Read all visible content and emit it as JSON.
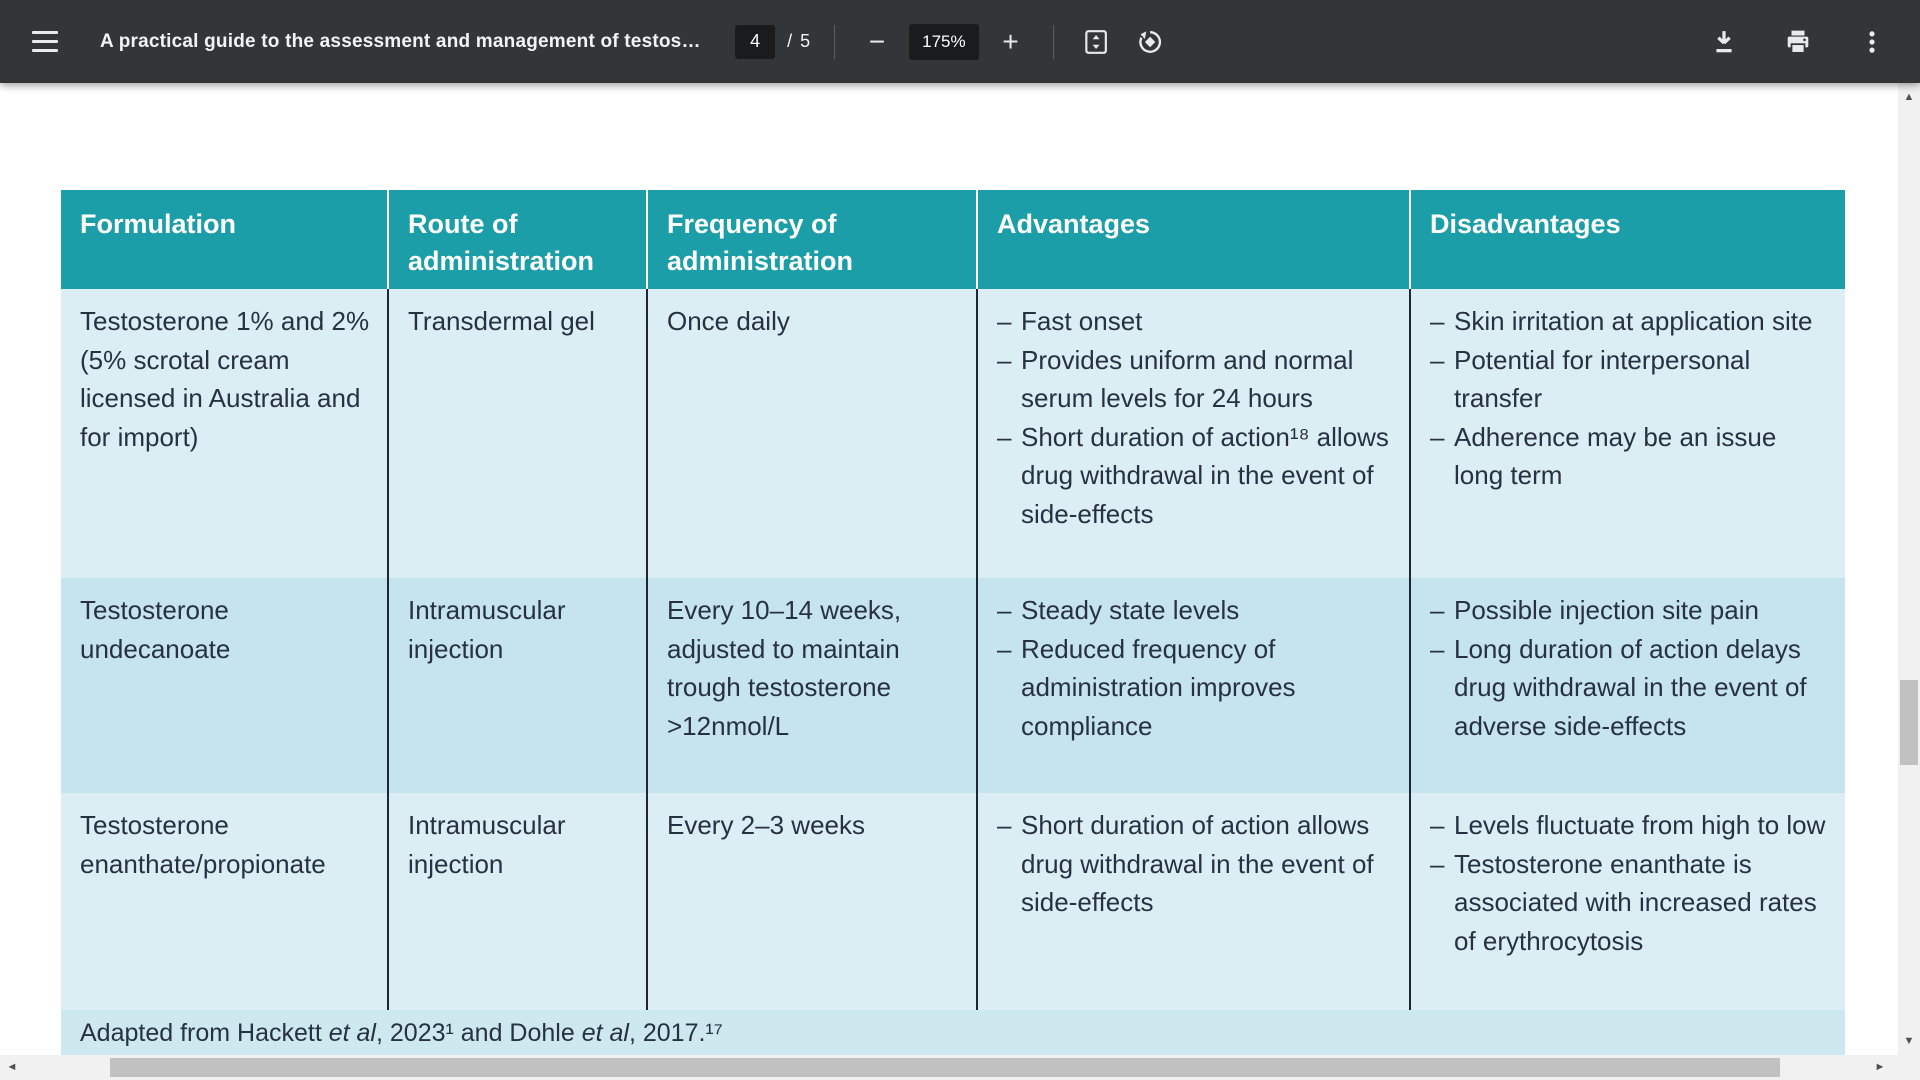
{
  "toolbar": {
    "title": "A practical guide to the assessment and management of testos…",
    "page_current": "4",
    "page_separator": "/",
    "page_total": "5",
    "zoom_out_label": "−",
    "zoom_level": "175%",
    "zoom_in_label": "+"
  },
  "icons": {
    "menu": "hamburger",
    "fit_page": "fit-to-page",
    "rotate": "rotate-counterclockwise",
    "download": "arrow-down-to-line",
    "print": "printer",
    "more": "three-vertical-dots",
    "scroll_up": "▲",
    "scroll_down": "▼",
    "scroll_left": "◄",
    "scroll_right": "►"
  },
  "colors": {
    "toolbar_bg": "#323639",
    "toolbar_field_bg": "#191b1c",
    "header_teal": "#1c9ea8",
    "row_light": "#dbeef3",
    "row_dark": "#c6e4ee",
    "footer_bg": "#cde9ef",
    "body_text": "#273142",
    "scroll_track": "#f1f1f1",
    "scroll_thumb": "#c1c1c1"
  },
  "table": {
    "bullet": "–",
    "headers": [
      "Formulation",
      "Route of administration",
      "Frequency of administration",
      "Advantages",
      "Disadvantages"
    ],
    "rows": [
      {
        "formulation": "Testosterone 1% and 2% (5% scrotal cream licensed in Australia and for import)",
        "route": "Transdermal gel",
        "frequency": "Once daily",
        "advantages": [
          "Fast onset",
          "Provides uniform and normal serum levels for 24 hours",
          "Short duration of action¹⁸ allows drug withdrawal in the event of side-effects"
        ],
        "disadvantages": [
          "Skin irritation at application site",
          "Potential for interpersonal transfer",
          "Adherence may be an issue long term"
        ]
      },
      {
        "formulation": "Testosterone undecanoate",
        "route": "Intramuscular injection",
        "frequency": "Every 10–14 weeks, adjusted to maintain trough testosterone >12nmol/L",
        "advantages": [
          "Steady state levels",
          "Reduced frequency of administration improves compliance"
        ],
        "disadvantages": [
          "Possible injection site pain",
          "Long duration of action delays drug withdrawal in the event of adverse side-effects"
        ]
      },
      {
        "formulation": "Testosterone enanthate/propionate",
        "route": "Intramuscular injection",
        "frequency": "Every 2–3 weeks",
        "advantages": [
          "Short duration of action allows drug withdrawal in the event of side-effects"
        ],
        "disadvantages": [
          "Levels fluctuate from high to low",
          "Testosterone enanthate is associated with increased rates of erythrocytosis"
        ]
      }
    ],
    "footer_parts": [
      "Adapted from Hackett ",
      "et al",
      ", 2023¹ and Dohle ",
      "et al",
      ", 2017.¹⁷"
    ]
  }
}
